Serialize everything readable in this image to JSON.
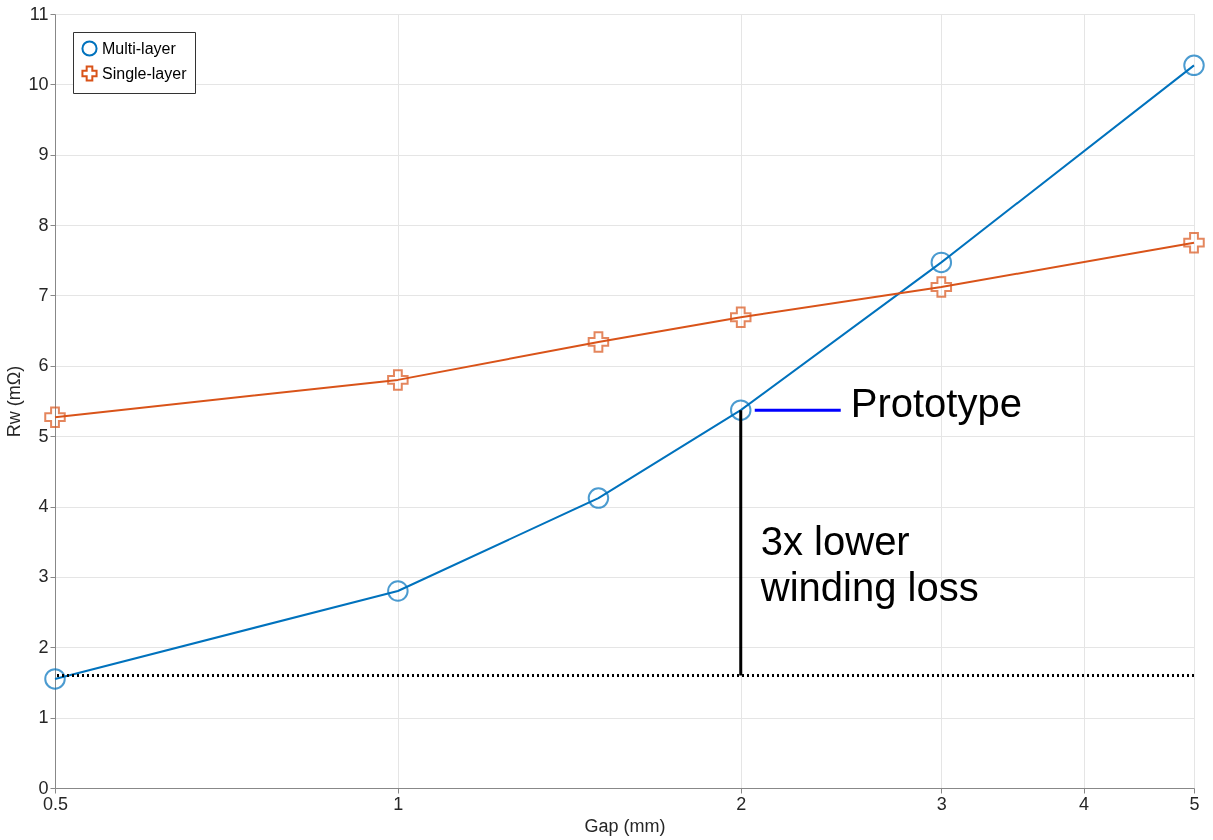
{
  "chart_data": {
    "type": "line",
    "xlabel": "Gap (mm)",
    "ylabel": "Rw (mΩ)",
    "log": "x",
    "x": [
      0.5,
      1,
      1.5,
      2,
      3,
      5
    ],
    "series": [
      {
        "name": "Multi-layer",
        "color": "#0072bd",
        "marker": "circle",
        "values": [
          1.55,
          2.8,
          4.12,
          5.37,
          7.47,
          10.27
        ]
      },
      {
        "name": "Single-layer",
        "color": "#d95319",
        "marker": "cross",
        "values": [
          5.27,
          5.8,
          6.34,
          6.69,
          7.12,
          7.75
        ]
      },
      {
        "type": "line",
        "color": "#000000",
        "x": [
          2,
          2
        ],
        "values": [
          5.37,
          1.6
        ]
      }
    ],
    "xlim": [
      0.5,
      5
    ],
    "xticks": [
      0.5,
      1,
      2,
      3,
      4,
      5
    ],
    "ylim": [
      0,
      11
    ],
    "yticks": [
      0,
      1,
      2,
      3,
      4,
      5,
      6,
      7,
      8,
      9,
      10,
      11
    ],
    "grid": true,
    "legend": "top left",
    "line_style": "solid",
    "ref_lines": [
      {
        "axis": "y",
        "value": 1.6,
        "label": null,
        "color": "#000000",
        "line_style": "dotted"
      }
    ],
    "annotations": [
      {
        "text": "Prototype",
        "x": 2,
        "y": 5.37
      },
      {
        "text": "3x lower winding loss",
        "x": 2,
        "y": 1.6
      }
    ]
  }
}
